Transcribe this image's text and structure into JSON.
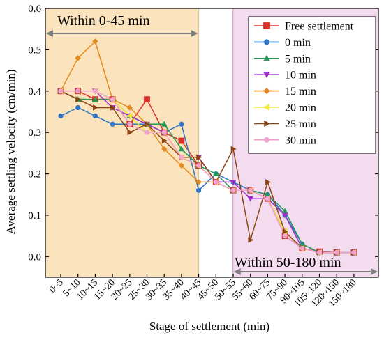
{
  "chart_data": {
    "type": "line",
    "title": "",
    "xlabel": "Stage of settlement (min)",
    "ylabel": "Average settling velocity (cm/min)",
    "ylim": [
      -0.05,
      0.6
    ],
    "yticks": [
      0.0,
      0.1,
      0.2,
      0.3,
      0.4,
      0.5,
      0.6
    ],
    "ytick_labels": [
      "0.0",
      "0.1",
      "0.2",
      "0.3",
      "0.4",
      "0.5",
      "0.6"
    ],
    "categories": [
      "0~5",
      "5~10",
      "10~15",
      "15~20",
      "20~25",
      "25~30",
      "30~35",
      "35~40",
      "40~45",
      "45~50",
      "50~55",
      "55~60",
      "60~75",
      "75~90",
      "90~105",
      "105~120",
      "120~150",
      "150~180"
    ],
    "grid": false,
    "legend_position": "top-right",
    "regions": [
      {
        "label": "Within 0-45 min",
        "from_index": -1,
        "to_index": 8,
        "color": "#fbe3bd"
      },
      {
        "label": "Within 50-180 min",
        "from_index": 9.99,
        "to_index": 18.6,
        "color": "#f3dcf0"
      }
    ],
    "series": [
      {
        "name": "Free settlement",
        "color": "#d9302b",
        "marker": "square",
        "values": [
          0.4,
          0.4,
          0.38,
          0.38,
          0.32,
          0.38,
          0.3,
          0.28,
          0.22,
          0.18,
          0.16,
          0.16,
          0.14,
          0.05,
          0.02,
          0.012,
          0.01,
          0.01
        ]
      },
      {
        "name": "0 min",
        "color": "#2e75c6",
        "marker": "circle",
        "values": [
          0.34,
          0.36,
          0.34,
          0.32,
          0.32,
          0.32,
          0.3,
          0.32,
          0.16,
          0.2,
          0.18,
          0.16,
          0.15,
          0.1,
          0.03,
          0.01,
          0.01,
          0.01
        ]
      },
      {
        "name": "5 min",
        "color": "#1f9a57",
        "marker": "triangle-up",
        "values": [
          0.4,
          0.38,
          0.38,
          0.38,
          0.34,
          0.32,
          0.32,
          0.26,
          0.22,
          0.2,
          0.16,
          0.16,
          0.15,
          0.11,
          0.03,
          0.01,
          0.01,
          0.01
        ]
      },
      {
        "name": "10 min",
        "color": "#9b30c8",
        "marker": "triangle-down",
        "values": [
          0.4,
          0.4,
          0.4,
          0.36,
          0.34,
          0.32,
          0.3,
          0.24,
          0.24,
          0.18,
          0.18,
          0.14,
          0.14,
          0.1,
          0.02,
          0.01,
          0.01,
          0.01
        ]
      },
      {
        "name": "15 min",
        "color": "#e48a1c",
        "marker": "diamond",
        "values": [
          0.4,
          0.48,
          0.52,
          0.38,
          0.36,
          0.32,
          0.26,
          0.22,
          0.18,
          0.18,
          0.16,
          0.16,
          0.14,
          0.06,
          0.02,
          0.01,
          0.01,
          0.01
        ]
      },
      {
        "name": "20 min",
        "color": "#f2ec2a",
        "marker": "triangle-left",
        "values": [
          0.4,
          0.4,
          0.4,
          0.38,
          0.34,
          0.3,
          0.3,
          0.24,
          0.22,
          0.18,
          0.16,
          0.16,
          0.14,
          0.06,
          0.02,
          0.01,
          0.01,
          0.01
        ]
      },
      {
        "name": "25 min",
        "color": "#8b4513",
        "marker": "triangle-right",
        "values": [
          0.4,
          0.38,
          0.36,
          0.36,
          0.3,
          0.32,
          0.28,
          0.24,
          0.24,
          0.18,
          0.26,
          0.04,
          0.18,
          0.06,
          0.02,
          0.01,
          0.01,
          0.01
        ]
      },
      {
        "name": "30 min",
        "color": "#f0a3cf",
        "marker": "circle",
        "values": [
          0.4,
          0.4,
          0.4,
          0.38,
          0.32,
          0.3,
          0.3,
          0.24,
          0.22,
          0.18,
          0.16,
          0.16,
          0.14,
          0.05,
          0.02,
          0.01,
          0.01,
          0.01
        ]
      }
    ]
  }
}
